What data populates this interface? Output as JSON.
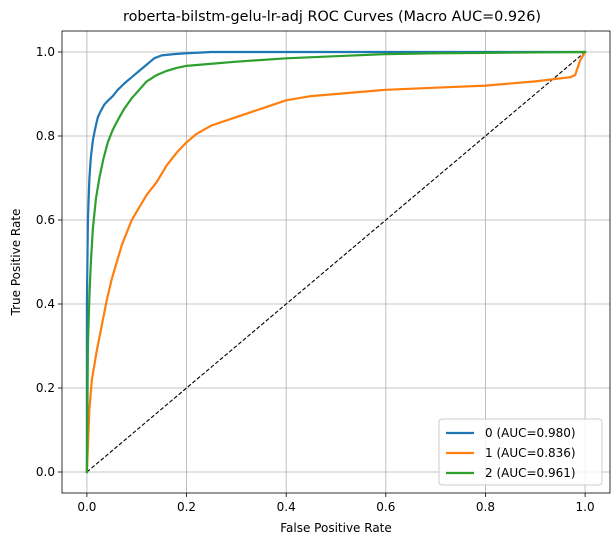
{
  "chart_data": {
    "type": "line",
    "title": "roberta-bilstm-gelu-lr-adj ROC Curves (Macro AUC=0.926)",
    "xlabel": "False Positive Rate",
    "ylabel": "True Positive Rate",
    "xlim": [
      -0.05,
      1.05
    ],
    "ylim": [
      -0.05,
      1.05
    ],
    "xticks": [
      0.0,
      0.2,
      0.4,
      0.6,
      0.8,
      1.0
    ],
    "yticks": [
      0.0,
      0.2,
      0.4,
      0.6,
      0.8,
      1.0
    ],
    "xtick_labels": [
      "0.0",
      "0.2",
      "0.4",
      "0.6",
      "0.8",
      "1.0"
    ],
    "ytick_labels": [
      "0.0",
      "0.2",
      "0.4",
      "0.6",
      "0.8",
      "1.0"
    ],
    "grid": true,
    "legend_position": "lower-right",
    "series": [
      {
        "name": "0 (AUC=0.980)",
        "color": "#1f77b4",
        "x": [
          0.0,
          0.0,
          0.002,
          0.005,
          0.008,
          0.012,
          0.017,
          0.022,
          0.028,
          0.035,
          0.043,
          0.052,
          0.062,
          0.075,
          0.09,
          0.105,
          0.12,
          0.135,
          0.15,
          0.175,
          0.2,
          0.25,
          0.3,
          0.4,
          0.5,
          0.6,
          0.7,
          0.8,
          0.9,
          1.0
        ],
        "y": [
          0.0,
          0.4,
          0.6,
          0.7,
          0.75,
          0.79,
          0.82,
          0.845,
          0.86,
          0.875,
          0.885,
          0.895,
          0.91,
          0.925,
          0.94,
          0.955,
          0.97,
          0.985,
          0.992,
          0.995,
          0.997,
          1.0,
          1.0,
          1.0,
          1.0,
          1.0,
          1.0,
          1.0,
          1.0,
          1.0
        ]
      },
      {
        "name": "1 (AUC=0.836)",
        "color": "#ff7f0e",
        "x": [
          0.0,
          0.005,
          0.01,
          0.02,
          0.03,
          0.04,
          0.05,
          0.06,
          0.07,
          0.08,
          0.09,
          0.1,
          0.12,
          0.14,
          0.16,
          0.18,
          0.2,
          0.22,
          0.25,
          0.3,
          0.35,
          0.4,
          0.45,
          0.5,
          0.55,
          0.6,
          0.7,
          0.8,
          0.9,
          0.97,
          0.98,
          0.99,
          1.0
        ],
        "y": [
          0.0,
          0.15,
          0.22,
          0.29,
          0.35,
          0.41,
          0.46,
          0.5,
          0.54,
          0.57,
          0.6,
          0.62,
          0.66,
          0.69,
          0.73,
          0.76,
          0.785,
          0.805,
          0.825,
          0.845,
          0.865,
          0.885,
          0.895,
          0.9,
          0.905,
          0.91,
          0.915,
          0.92,
          0.93,
          0.94,
          0.945,
          0.98,
          1.0
        ]
      },
      {
        "name": "2 (AUC=0.961)",
        "color": "#2ca02c",
        "x": [
          0.0,
          0.002,
          0.005,
          0.008,
          0.012,
          0.018,
          0.025,
          0.033,
          0.042,
          0.052,
          0.063,
          0.075,
          0.09,
          0.105,
          0.12,
          0.14,
          0.16,
          0.18,
          0.2,
          0.25,
          0.3,
          0.4,
          0.5,
          0.6,
          0.7,
          0.8,
          0.9,
          1.0
        ],
        "y": [
          0.0,
          0.3,
          0.42,
          0.5,
          0.58,
          0.65,
          0.7,
          0.745,
          0.785,
          0.815,
          0.84,
          0.865,
          0.89,
          0.91,
          0.93,
          0.945,
          0.955,
          0.962,
          0.967,
          0.972,
          0.977,
          0.985,
          0.99,
          0.995,
          0.997,
          0.998,
          0.999,
          1.0
        ]
      }
    ],
    "diagonal": {
      "x": [
        0,
        1
      ],
      "y": [
        0,
        1
      ],
      "color": "#000000",
      "style": "dashed"
    }
  }
}
